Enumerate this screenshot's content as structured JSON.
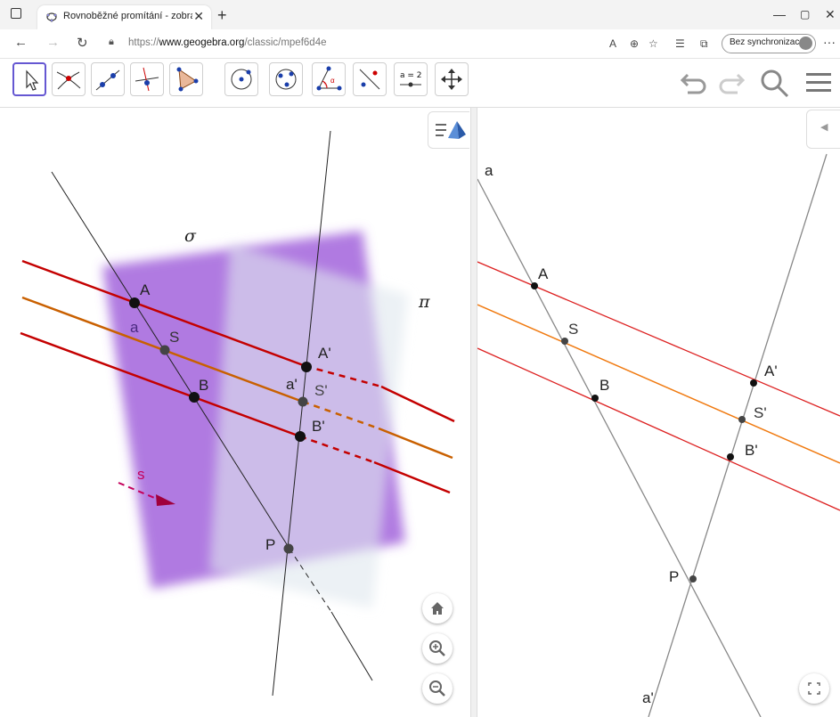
{
  "browser": {
    "tab_title": "Rovnoběžné promítání - zobraze",
    "url_prefix": "https://",
    "url_host": "www.geogebra.org",
    "url_path": "/classic/mpef6d4e",
    "sync_label": "Bez synchronizace"
  },
  "toolbar": {
    "tools": [
      "move-tool",
      "point-tool",
      "line-tool",
      "perpendicular-tool",
      "polygon-tool",
      "circle-tool",
      "conic-tool",
      "angle-tool",
      "reflect-tool",
      "slider-tool",
      "move-view-tool"
    ],
    "slider_label": "a = 2"
  },
  "left_view": {
    "labels": {
      "sigma": "σ",
      "pi": "π",
      "A": "A",
      "a": "a",
      "S": "S",
      "B": "B",
      "Ap": "A'",
      "ap": "a'",
      "Sp": "S'",
      "Bp": "B'",
      "s": "s",
      "P": "P"
    }
  },
  "right_view": {
    "labels": {
      "a": "a",
      "A": "A",
      "S": "S",
      "B": "B",
      "Ap": "A'",
      "Sp": "S'",
      "Bp": "B'",
      "P": "P",
      "ap": "a'"
    }
  },
  "colors": {
    "red": "#cc0000",
    "orange": "#cc6600",
    "violet": "#9b59d6",
    "accent": "#6557d2"
  }
}
